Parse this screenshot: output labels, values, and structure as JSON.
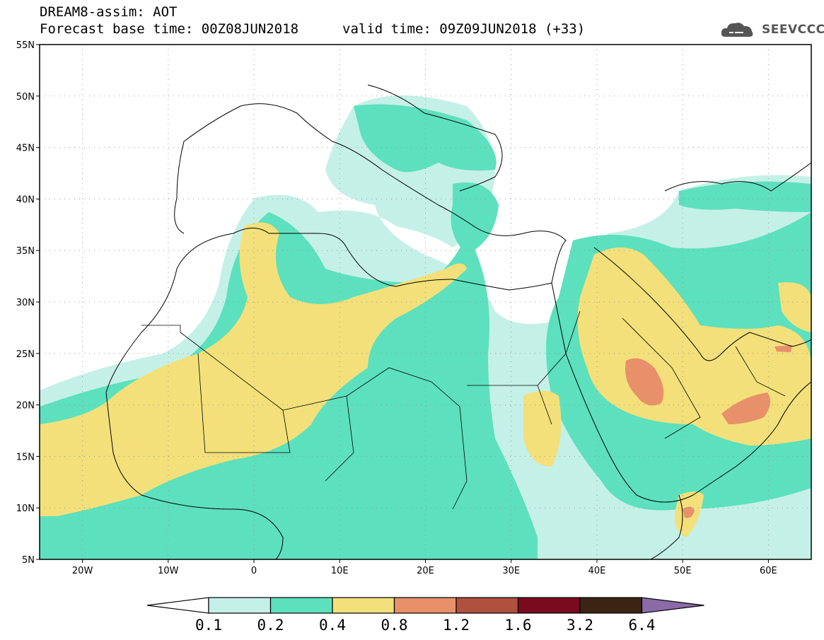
{
  "header": {
    "title": "DREAM8-assim: AOT",
    "forecast_base": "Forecast base time: 00Z08JUN2018",
    "valid_time": "valid time: 09Z09JUN2018 (+33)",
    "logo_text": "SEEVCCC"
  },
  "map": {
    "lon_range": [
      -25,
      65
    ],
    "lat_range": [
      5,
      55
    ],
    "lat_ticks": [
      {
        "value": 55,
        "label": "55N"
      },
      {
        "value": 50,
        "label": "50N"
      },
      {
        "value": 45,
        "label": "45N"
      },
      {
        "value": 40,
        "label": "40N"
      },
      {
        "value": 35,
        "label": "35N"
      },
      {
        "value": 30,
        "label": "30N"
      },
      {
        "value": 25,
        "label": "25N"
      },
      {
        "value": 20,
        "label": "20N"
      },
      {
        "value": 15,
        "label": "15N"
      },
      {
        "value": 10,
        "label": "10N"
      },
      {
        "value": 5,
        "label": "5N"
      }
    ],
    "lon_ticks": [
      {
        "value": -20,
        "label": "20W"
      },
      {
        "value": -10,
        "label": "10W"
      },
      {
        "value": 0,
        "label": "0"
      },
      {
        "value": 10,
        "label": "10E"
      },
      {
        "value": 20,
        "label": "20E"
      },
      {
        "value": 30,
        "label": "30E"
      },
      {
        "value": 40,
        "label": "40E"
      },
      {
        "value": 50,
        "label": "50E"
      },
      {
        "value": 60,
        "label": "60E"
      }
    ],
    "grid": true
  },
  "colorbar": {
    "labels": [
      "0.1",
      "0.2",
      "0.4",
      "0.8",
      "1.2",
      "1.6",
      "3.2",
      "6.4"
    ],
    "colors": [
      "#c5f0e8",
      "#5de0bd",
      "#f3e07a",
      "#e8906a",
      "#b0503e",
      "#7a0a1e",
      "#3b2414",
      "#8b6aa8"
    ]
  }
}
